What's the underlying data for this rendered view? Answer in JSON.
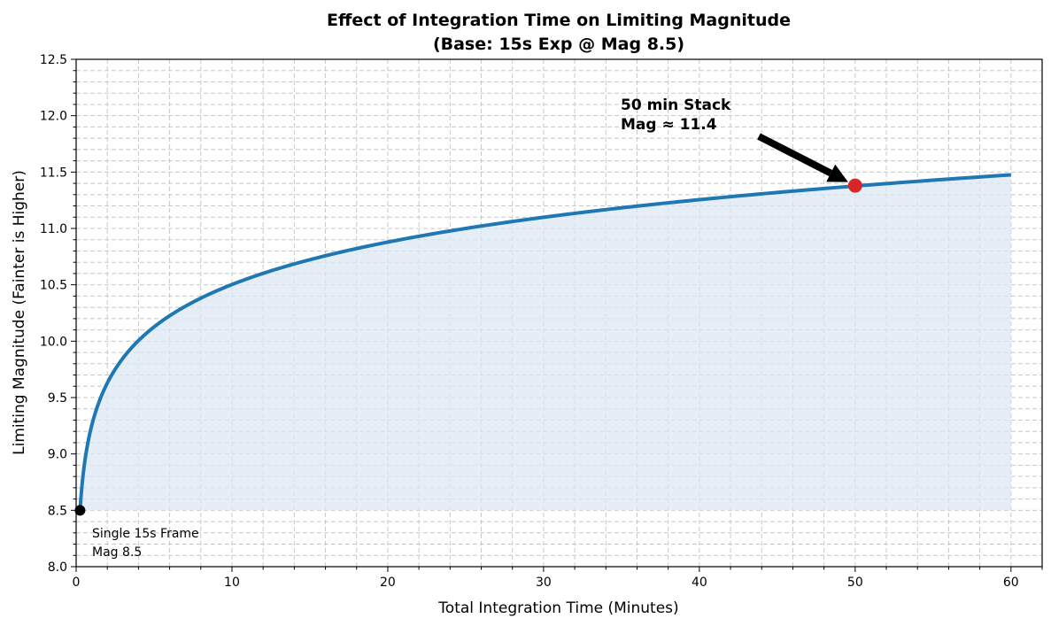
{
  "chart_data": {
    "type": "line",
    "title_line1": "Effect of Integration Time on Limiting Magnitude",
    "title_line2": "(Base: 15s Exp @ Mag 8.5)",
    "xlabel": "Total Integration Time (Minutes)",
    "ylabel": "Limiting Magnitude (Fainter is Higher)",
    "xlim": [
      0,
      62
    ],
    "ylim": [
      8.0,
      12.5
    ],
    "xticks": [
      0,
      10,
      20,
      30,
      40,
      50,
      60
    ],
    "xtick_labels": [
      "0",
      "10",
      "20",
      "30",
      "40",
      "50",
      "60"
    ],
    "x_minor_step": 2,
    "yticks": [
      8.0,
      8.5,
      9.0,
      9.5,
      10.0,
      10.5,
      11.0,
      11.5,
      12.0,
      12.5
    ],
    "ytick_labels": [
      "8.0",
      "8.5",
      "9.0",
      "9.5",
      "10.0",
      "10.5",
      "11.0",
      "11.5",
      "12.0",
      "12.5"
    ],
    "y_minor_step": 0.1,
    "grid": true,
    "series": [
      {
        "name": "Limiting Magnitude",
        "model": "8.5 + 1.25*log10(t/0.25)",
        "x_start": 0.25,
        "x_end": 60,
        "x": [
          0.25,
          0.5,
          1,
          2,
          5,
          10,
          20,
          30,
          40,
          50,
          60
        ],
        "y": [
          8.5,
          8.88,
          9.25,
          9.63,
          10.13,
          10.5,
          10.88,
          11.1,
          11.26,
          11.38,
          11.48
        ],
        "color": "#1f77b4",
        "fill_to": 8.5,
        "fill_color": "#dce8f4"
      }
    ],
    "points": [
      {
        "name": "start-point",
        "x": 0.25,
        "y": 8.5,
        "color": "#000000"
      },
      {
        "name": "highlight-point",
        "x": 50,
        "y": 11.38,
        "color": "#d62728"
      }
    ],
    "annotations": [
      {
        "line1": "50 min Stack",
        "line2": "Mag ≈ 11.4",
        "target_x": 50,
        "target_y": 11.38
      },
      {
        "line1": "Single 15s Frame",
        "line2": "Mag 8.5"
      }
    ]
  }
}
